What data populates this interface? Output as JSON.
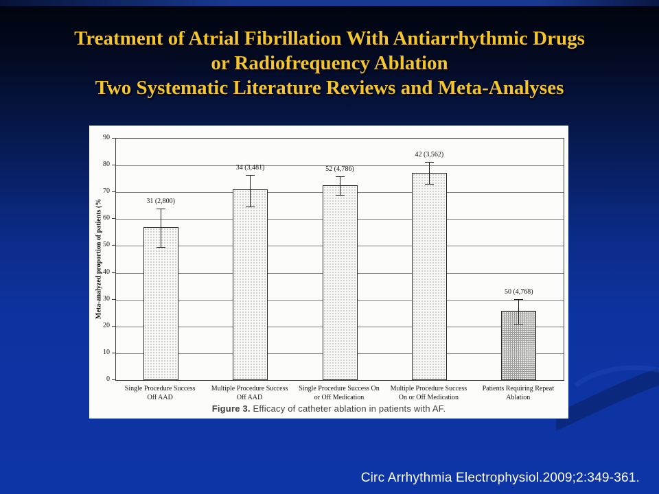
{
  "slide": {
    "title_lines": [
      "Treatment of Atrial Fibrillation With Antiarrhythmic Drugs",
      "or Radiofrequency Ablation",
      "Two Systematic Literature Reviews and Meta-Analyses"
    ],
    "citation": "Circ Arrhythmia Electrophysiol.2009;2:349-361.",
    "colors": {
      "background_top": "#01040c",
      "background_bottom": "#0e35a6",
      "title_gold": "#f3c52f",
      "citation_text": "#ffffff",
      "chart_panel": "#fcfcfa"
    }
  },
  "chart_data": {
    "type": "bar",
    "title": "",
    "ylabel": "Meta-analyzed proportion of patients (%",
    "xlabel": "",
    "ylim": [
      0,
      90
    ],
    "yticks": [
      0,
      10,
      20,
      30,
      40,
      50,
      60,
      70,
      80,
      90
    ],
    "grid": true,
    "legend": "none",
    "caption": {
      "bold": "Figure 3.",
      "text": " Efficacy of catheter ablation in patients with AF."
    },
    "bars": [
      {
        "category": "Single Procedure Success\nOff AAD",
        "value": 57.0,
        "ci_low": 49.5,
        "ci_high": 64.0,
        "label": "31 (2,800)",
        "pattern": "dots"
      },
      {
        "category": "Multiple Procedure Success\nOff AAD",
        "value": 71.0,
        "ci_low": 64.7,
        "ci_high": 76.5,
        "label": "34 (3,481)",
        "pattern": "dots"
      },
      {
        "category": "Single Procedure Success On\nor Off Medication",
        "value": 72.5,
        "ci_low": 69.0,
        "ci_high": 76.0,
        "label": "52 (4,786)",
        "pattern": "dots"
      },
      {
        "category": "Multiple Procedure Success\nOn or Off Medication",
        "value": 77.3,
        "ci_low": 73.2,
        "ci_high": 81.2,
        "label": "42 (3,562)",
        "pattern": "dots"
      },
      {
        "category": "Patients Requiring Repeat\nAblation",
        "value": 25.8,
        "ci_low": 21.0,
        "ci_high": 30.2,
        "label": "50 (4,768)",
        "pattern": "grid"
      }
    ]
  }
}
